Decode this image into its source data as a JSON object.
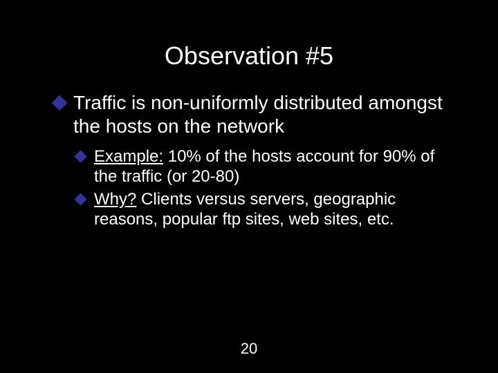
{
  "slide": {
    "title": "Observation #5",
    "background_color": "#000000",
    "text_color": "#ffffff",
    "bullet_color": "#333399",
    "title_fontsize": 36,
    "body_fontsize_l1": 28,
    "body_fontsize_l2": 24,
    "bullets": [
      {
        "level": 1,
        "text": "Traffic is non-uniformly distributed amongst the hosts on the network"
      },
      {
        "level": 2,
        "lead": "Example:",
        "lead_underline": true,
        "rest": " 10% of the hosts account for 90% of the traffic (or 20-80)"
      },
      {
        "level": 2,
        "lead": "Why?",
        "lead_underline": true,
        "rest": " Clients versus servers, geographic reasons, popular ftp sites, web sites, etc."
      }
    ],
    "page_number": "20"
  }
}
